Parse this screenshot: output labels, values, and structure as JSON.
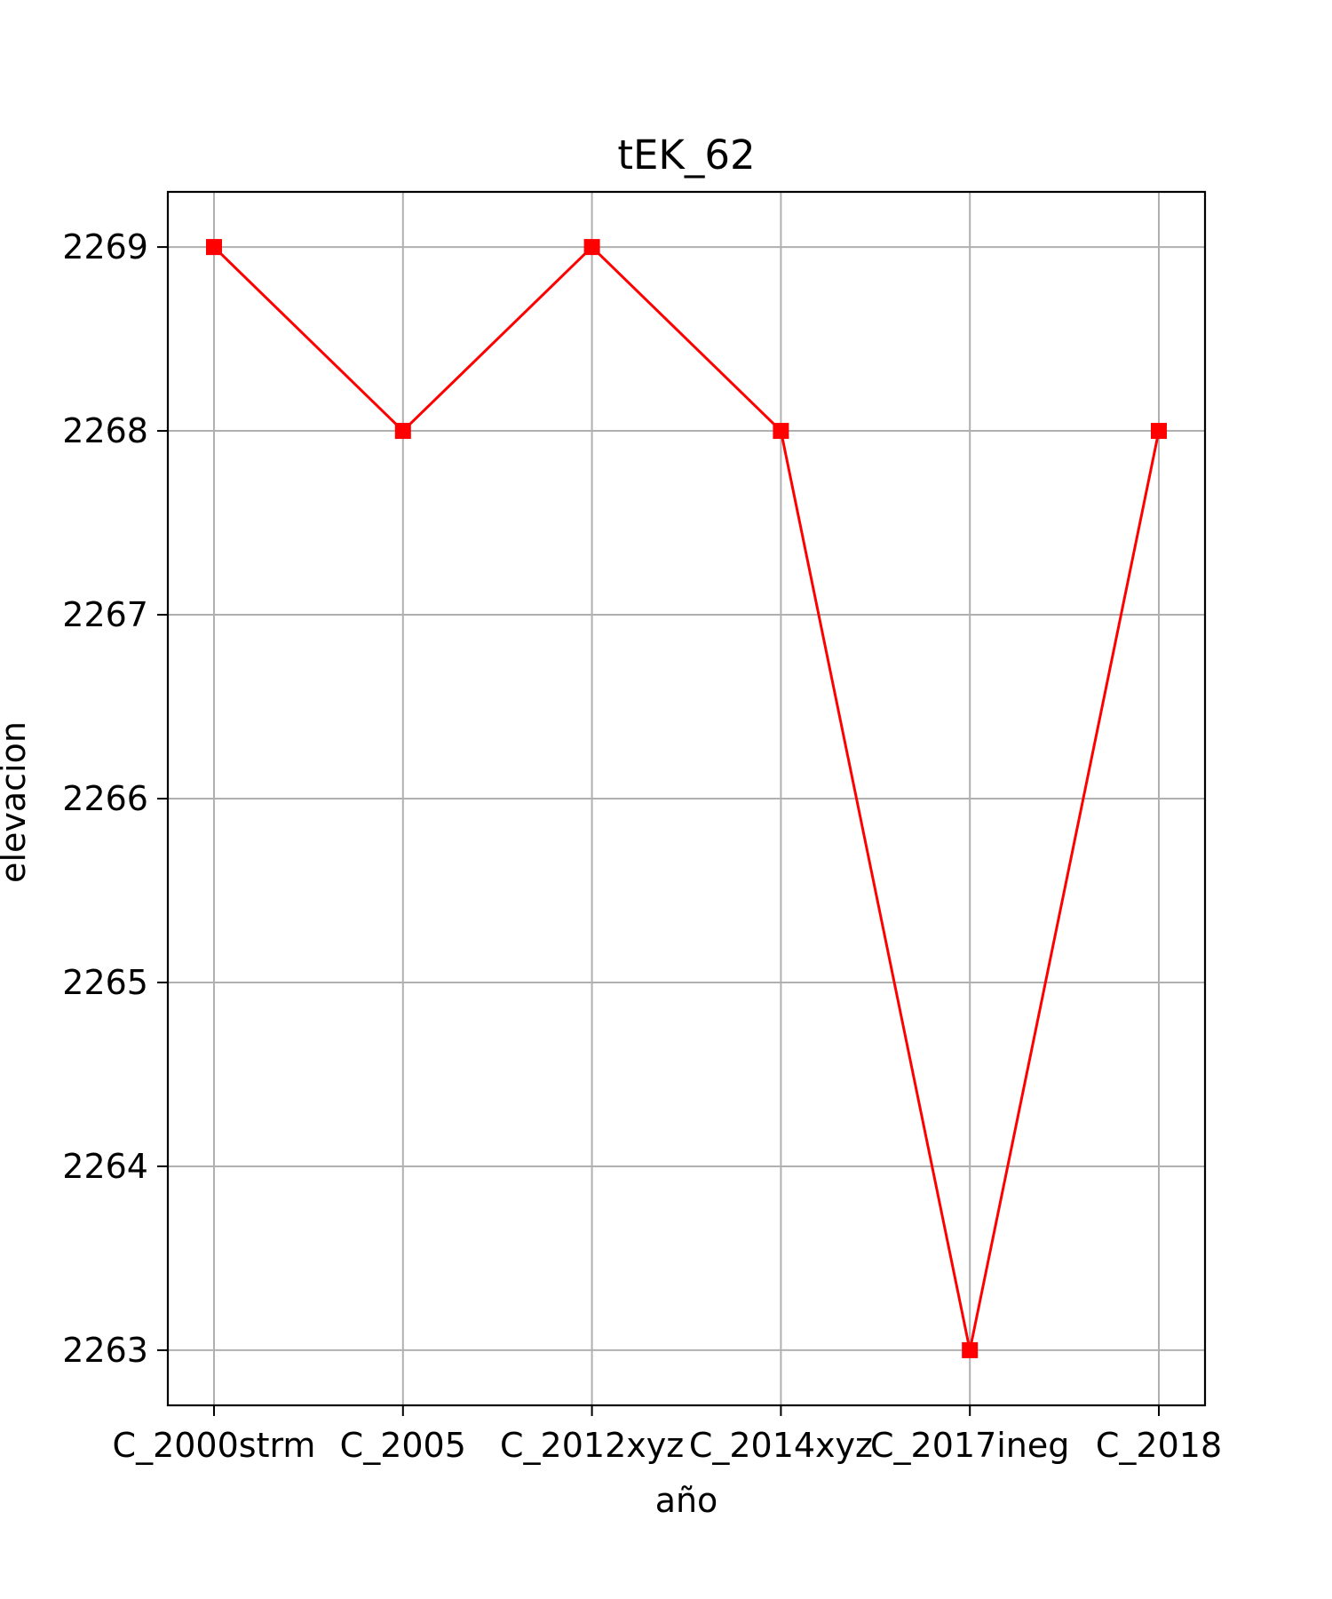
{
  "chart_data": {
    "type": "line",
    "title": "tEK_62",
    "xlabel": "año",
    "ylabel": "elevacion",
    "categories": [
      "C_2000strm",
      "C_2005",
      "C_2012xyz",
      "C_2014xyz",
      "C_2017ineg",
      "C_2018"
    ],
    "series": [
      {
        "values": [
          2269,
          2268,
          2269,
          2268,
          2263,
          2268
        ],
        "color": "#ff0000",
        "marker": "square"
      }
    ],
    "ylim": [
      2262.7,
      2269.3
    ],
    "yticks": [
      2263,
      2264,
      2265,
      2266,
      2267,
      2268,
      2269
    ],
    "grid": true,
    "legend": "none"
  }
}
